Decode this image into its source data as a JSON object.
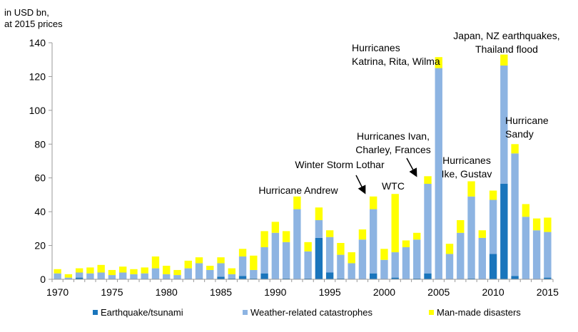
{
  "chart_data": {
    "type": "bar",
    "stacked": true,
    "ylabel_lines": [
      "in USD bn,",
      "at 2015 prices"
    ],
    "ylim": [
      0,
      140
    ],
    "yticks": [
      0,
      20,
      40,
      60,
      80,
      100,
      120,
      140
    ],
    "xticks": [
      1970,
      1975,
      1980,
      1985,
      1990,
      1995,
      2000,
      2005,
      2010,
      2015
    ],
    "grid": false,
    "legend_position": "bottom",
    "colors": {
      "earthquake": "#1a75bc",
      "weather": "#8db4e2",
      "manmade": "#ffff00",
      "outline": "#9a9a9a"
    },
    "x": [
      1970,
      1971,
      1972,
      1973,
      1974,
      1975,
      1976,
      1977,
      1978,
      1979,
      1980,
      1981,
      1982,
      1983,
      1984,
      1985,
      1986,
      1987,
      1988,
      1989,
      1990,
      1991,
      1992,
      1993,
      1994,
      1995,
      1996,
      1997,
      1998,
      1999,
      2000,
      2001,
      2002,
      2003,
      2004,
      2005,
      2006,
      2007,
      2008,
      2009,
      2010,
      2011,
      2012,
      2013,
      2014,
      2015
    ],
    "series": [
      {
        "name": "Earthquake/tsunami",
        "color_key": "earthquake",
        "values": [
          0,
          0,
          1,
          0,
          0,
          0,
          0,
          0,
          0,
          0,
          0,
          0,
          0,
          0,
          0,
          1.5,
          0.5,
          2,
          0.5,
          3.5,
          0,
          0.5,
          0,
          0.5,
          24.5,
          4,
          0.5,
          0,
          0,
          3.5,
          0,
          1,
          0,
          0.5,
          3.5,
          0,
          0,
          0,
          0.5,
          0,
          15,
          56.5,
          2,
          0,
          0,
          1
        ]
      },
      {
        "name": "Weather-related catastrophes",
        "color_key": "weather",
        "values": [
          3.5,
          1,
          3,
          3.5,
          4,
          2.5,
          4,
          3,
          3.5,
          6.5,
          3,
          2.5,
          6.5,
          9.5,
          5.5,
          8,
          2.5,
          11.5,
          5,
          15.5,
          27.5,
          21.5,
          41.5,
          16,
          10.5,
          21,
          14,
          9.5,
          23.5,
          38,
          11.5,
          15,
          19,
          23,
          53,
          125,
          15,
          27.5,
          48.5,
          24.5,
          32,
          70,
          72.5,
          37,
          29,
          27
        ]
      },
      {
        "name": "Man-made disasters",
        "color_key": "manmade",
        "values": [
          2.5,
          2,
          2.5,
          3.5,
          4.5,
          3,
          3.5,
          3,
          3.5,
          7,
          5,
          3,
          4.5,
          3.5,
          2.5,
          3.5,
          3.5,
          4.5,
          8.5,
          9.5,
          6.5,
          6.5,
          7.5,
          5.5,
          7.5,
          4,
          7,
          6.5,
          6,
          7.5,
          6.5,
          34.5,
          4,
          4,
          4.5,
          6.5,
          6,
          7.5,
          9,
          4.5,
          5.5,
          6.5,
          5.5,
          7.5,
          7,
          8.5
        ]
      }
    ],
    "annotations": [
      {
        "lines": [
          "Hurricane Andrew"
        ]
      },
      {
        "lines": [
          "Winter Storm Lothar"
        ]
      },
      {
        "lines": [
          "WTC"
        ]
      },
      {
        "lines": [
          "Hurricanes",
          "Katrina, Rita, Wilma"
        ]
      },
      {
        "lines": [
          "Hurricanes Ivan,",
          "Charley, Frances"
        ]
      },
      {
        "lines": [
          "Hurricanes",
          "Ike, Gustav"
        ]
      },
      {
        "lines": [
          "Japan, NZ earthquakes,",
          "Thailand flood"
        ]
      },
      {
        "lines": [
          "Hurricane",
          "Sandy"
        ]
      }
    ]
  }
}
